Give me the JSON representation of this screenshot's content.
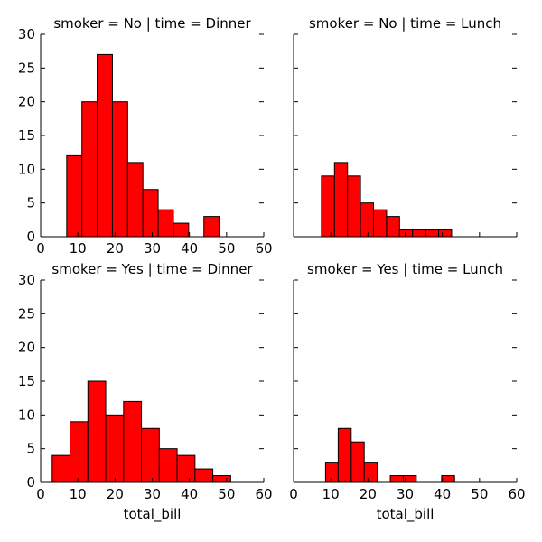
{
  "chart_data": [
    {
      "type": "bar",
      "title": "smoker = No | time = Dinner",
      "xlabel": "",
      "ylabel": "",
      "xlim": [
        0,
        60
      ],
      "ylim": [
        0,
        30
      ],
      "xticks": [
        "0",
        "10",
        "20",
        "30",
        "40",
        "50",
        "60"
      ],
      "yticks": [
        "0",
        "5",
        "10",
        "15",
        "20",
        "25",
        "30"
      ],
      "bins": [
        {
          "x0": 7.0,
          "x1": 11.1,
          "count": 12
        },
        {
          "x0": 11.1,
          "x1": 15.2,
          "count": 20
        },
        {
          "x0": 15.2,
          "x1": 19.3,
          "count": 27
        },
        {
          "x0": 19.3,
          "x1": 23.4,
          "count": 20
        },
        {
          "x0": 23.4,
          "x1": 27.5,
          "count": 11
        },
        {
          "x0": 27.5,
          "x1": 31.6,
          "count": 7
        },
        {
          "x0": 31.6,
          "x1": 35.7,
          "count": 4
        },
        {
          "x0": 35.7,
          "x1": 39.8,
          "count": 2
        },
        {
          "x0": 43.9,
          "x1": 48.0,
          "count": 3
        }
      ]
    },
    {
      "type": "bar",
      "title": "smoker = No | time = Lunch",
      "xlabel": "",
      "ylabel": "",
      "xlim": [
        0,
        60
      ],
      "ylim": [
        0,
        30
      ],
      "xticks": [],
      "yticks": [],
      "bins": [
        {
          "x0": 7.5,
          "x1": 11.0,
          "count": 9
        },
        {
          "x0": 11.0,
          "x1": 14.5,
          "count": 11
        },
        {
          "x0": 14.5,
          "x1": 18.0,
          "count": 9
        },
        {
          "x0": 18.0,
          "x1": 21.5,
          "count": 5
        },
        {
          "x0": 21.5,
          "x1": 25.0,
          "count": 4
        },
        {
          "x0": 25.0,
          "x1": 28.5,
          "count": 3
        },
        {
          "x0": 28.5,
          "x1": 32.0,
          "count": 1
        },
        {
          "x0": 32.0,
          "x1": 35.5,
          "count": 1
        },
        {
          "x0": 35.5,
          "x1": 39.0,
          "count": 1
        },
        {
          "x0": 39.0,
          "x1": 42.5,
          "count": 1
        }
      ]
    },
    {
      "type": "bar",
      "title": "smoker = Yes | time = Dinner",
      "xlabel": "total_bill",
      "ylabel": "",
      "xlim": [
        0,
        60
      ],
      "ylim": [
        0,
        30
      ],
      "xticks": [
        "0",
        "10",
        "20",
        "30",
        "40",
        "50",
        "60"
      ],
      "yticks": [
        "0",
        "5",
        "10",
        "15",
        "20",
        "25",
        "30"
      ],
      "bins": [
        {
          "x0": 3.1,
          "x1": 7.9,
          "count": 4
        },
        {
          "x0": 7.9,
          "x1": 12.7,
          "count": 9
        },
        {
          "x0": 12.7,
          "x1": 17.5,
          "count": 15
        },
        {
          "x0": 17.5,
          "x1": 22.3,
          "count": 10
        },
        {
          "x0": 22.3,
          "x1": 27.1,
          "count": 12
        },
        {
          "x0": 27.1,
          "x1": 31.9,
          "count": 8
        },
        {
          "x0": 31.9,
          "x1": 36.7,
          "count": 5
        },
        {
          "x0": 36.7,
          "x1": 41.5,
          "count": 4
        },
        {
          "x0": 41.5,
          "x1": 46.3,
          "count": 2
        },
        {
          "x0": 46.3,
          "x1": 51.1,
          "count": 1
        }
      ]
    },
    {
      "type": "bar",
      "title": "smoker = Yes | time = Lunch",
      "xlabel": "total_bill",
      "ylabel": "",
      "xlim": [
        0,
        60
      ],
      "ylim": [
        0,
        30
      ],
      "xticks": [
        "0",
        "10",
        "20",
        "30",
        "40",
        "50",
        "60"
      ],
      "yticks": [],
      "bins": [
        {
          "x0": 8.6,
          "x1": 12.0,
          "count": 3
        },
        {
          "x0": 12.0,
          "x1": 15.5,
          "count": 8
        },
        {
          "x0": 15.5,
          "x1": 19.0,
          "count": 6
        },
        {
          "x0": 19.0,
          "x1": 22.5,
          "count": 3
        },
        {
          "x0": 26.0,
          "x1": 29.5,
          "count": 1
        },
        {
          "x0": 29.5,
          "x1": 33.0,
          "count": 1
        },
        {
          "x0": 39.8,
          "x1": 43.3,
          "count": 1
        }
      ]
    }
  ],
  "colors": {
    "bar_fill": "#ff0000",
    "bar_edge": "#000000",
    "axis": "#000000"
  }
}
